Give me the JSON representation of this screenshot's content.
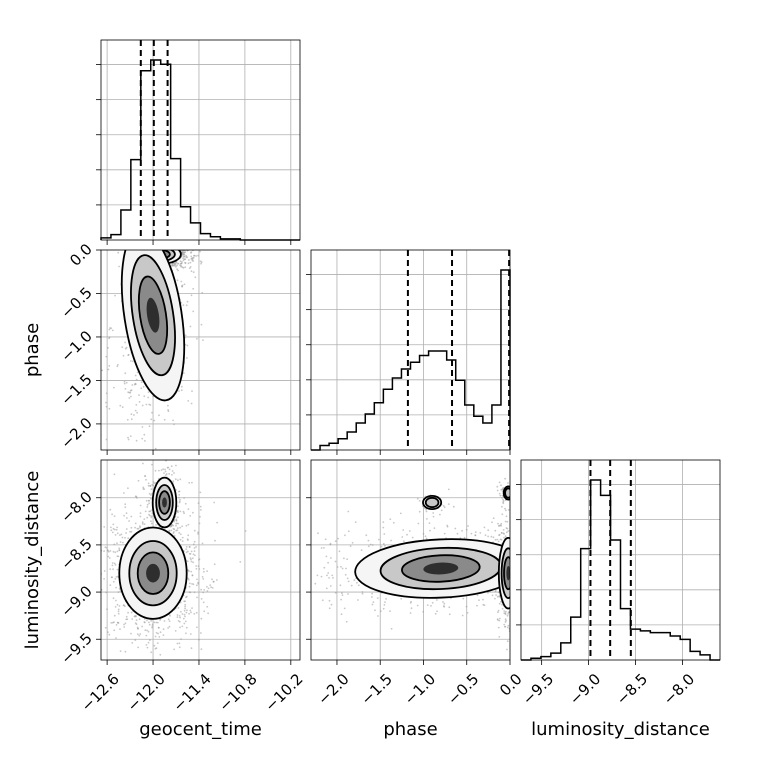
{
  "chart_data": {
    "type": "corner",
    "parameters": [
      "geocent_time",
      "phase",
      "luminosity_distance"
    ],
    "axis_ranges": {
      "geocent_time": [
        -12.68,
        -10.08
      ],
      "phase": [
        -2.3,
        0.0
      ],
      "luminosity_distance": [
        -9.72,
        -7.6
      ]
    },
    "ticks": {
      "geocent_time": {
        "values": [
          -12.6,
          -12.0,
          -11.4,
          -10.8,
          -10.2
        ],
        "labels": [
          "−12.6",
          "−12.0",
          "−11.4",
          "−10.8",
          "−10.2"
        ]
      },
      "phase": {
        "values": [
          -2.0,
          -1.5,
          -1.0,
          -0.5,
          0.0
        ],
        "labels": [
          "−2.0",
          "−1.5",
          "−1.0",
          "−0.5",
          "0.0"
        ]
      },
      "luminosity_distance": {
        "values": [
          -9.5,
          -9.0,
          -8.5,
          -8.0
        ],
        "labels": [
          "−9.5",
          "−9.0",
          "−8.5",
          "−8.0"
        ]
      }
    },
    "histograms": {
      "geocent_time": {
        "range": [
          -12.68,
          -10.08
        ],
        "counts": [
          2,
          5,
          28,
          75,
          158,
          168,
          164,
          76,
          31,
          16,
          6,
          3,
          1,
          1,
          0,
          0,
          0,
          0,
          0,
          0
        ],
        "quantiles": [
          -12.16,
          -11.99,
          -11.81
        ]
      },
      "phase": {
        "range": [
          -2.3,
          0.0
        ],
        "counts": [
          0,
          2,
          3,
          5,
          8,
          12,
          16,
          21,
          27,
          32,
          36,
          39,
          42,
          44,
          44,
          40,
          31,
          20,
          15,
          12,
          20,
          80
        ],
        "quantiles": [
          -1.18,
          -0.67,
          -0.01
        ]
      },
      "luminosity_distance": {
        "range": [
          -9.72,
          -7.6
        ],
        "counts": [
          0,
          1,
          2,
          4,
          10,
          25,
          65,
          105,
          96,
          70,
          30,
          18,
          17,
          16,
          16,
          14,
          12,
          5,
          3,
          0
        ],
        "quantiles": [
          -8.98,
          -8.77,
          -8.55
        ]
      }
    },
    "densities_2d": [
      {
        "x": "geocent_time",
        "y": "phase",
        "levels": 4,
        "peaks": [
          [
            -11.9,
            -0.05
          ],
          [
            -12.0,
            -0.7
          ]
        ]
      },
      {
        "x": "geocent_time",
        "y": "luminosity_distance",
        "levels": 4,
        "peaks": [
          [
            -12.0,
            -8.8
          ],
          [
            -11.85,
            -8.05
          ]
        ]
      },
      {
        "x": "phase",
        "y": "luminosity_distance",
        "levels": 4,
        "peaks": [
          [
            -0.75,
            -8.75
          ],
          [
            -0.02,
            -8.8
          ]
        ]
      }
    ],
    "grid": true
  }
}
